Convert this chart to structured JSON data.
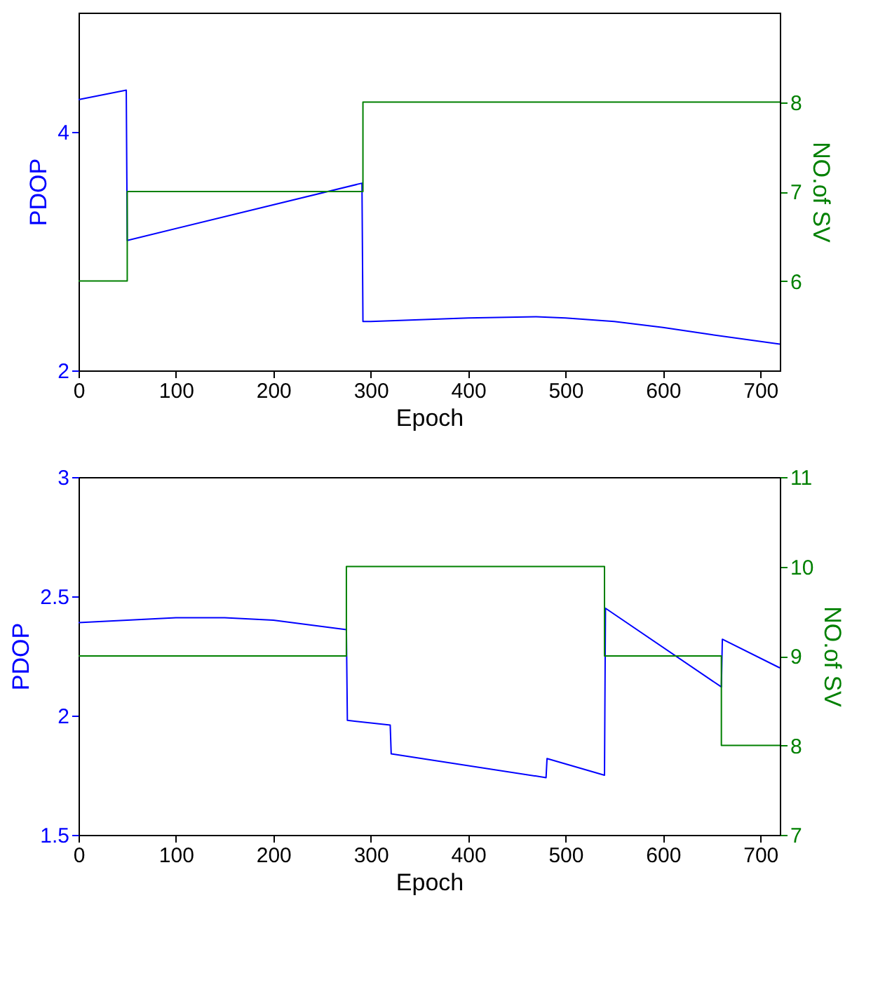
{
  "chart_data": [
    {
      "type": "line",
      "xlabel": "Epoch",
      "ylabel": "PDOP",
      "y2label": "NO.of SV",
      "xlim": [
        0,
        720
      ],
      "xticks": [
        0,
        100,
        200,
        300,
        400,
        500,
        600,
        700
      ],
      "ylim": [
        2,
        5
      ],
      "yticks": [
        2,
        4
      ],
      "y2lim": [
        5,
        9
      ],
      "y2ticks": [
        6,
        7,
        8
      ],
      "grid": false,
      "marker": "none",
      "line_style": "solid",
      "series": [
        {
          "type": "line",
          "color": "#0000ff",
          "x": [
            0,
            49,
            50,
            291,
            292,
            300,
            400,
            470,
            500,
            550,
            600,
            650,
            720
          ],
          "values": [
            4.27,
            4.35,
            3.09,
            3.57,
            2.41,
            2.41,
            2.44,
            2.45,
            2.44,
            2.41,
            2.36,
            2.3,
            2.22
          ]
        },
        {
          "type": "step",
          "axis": "y2",
          "color": "#008000",
          "x": [
            0,
            50,
            292,
            720
          ],
          "values": [
            6,
            7,
            8,
            8
          ]
        }
      ]
    },
    {
      "type": "line",
      "xlabel": "Epoch",
      "ylabel": "PDOP",
      "y2label": "NO.of SV",
      "xlim": [
        0,
        720
      ],
      "xticks": [
        0,
        100,
        200,
        300,
        400,
        500,
        600,
        700
      ],
      "ylim": [
        1.5,
        3
      ],
      "yticks": [
        1.5,
        2,
        2.5,
        3
      ],
      "y2lim": [
        7,
        11
      ],
      "y2ticks": [
        7,
        8,
        9,
        10,
        11
      ],
      "grid": false,
      "marker": "none",
      "line_style": "solid",
      "series": [
        {
          "type": "line",
          "color": "#0000ff",
          "x": [
            0,
            100,
            150,
            200,
            275,
            276,
            320,
            321,
            480,
            481,
            540,
            541,
            660,
            661,
            720
          ],
          "values": [
            2.39,
            2.41,
            2.41,
            2.4,
            2.36,
            1.98,
            1.96,
            1.84,
            1.74,
            1.82,
            1.75,
            2.45,
            2.12,
            2.32,
            2.2
          ]
        },
        {
          "type": "step",
          "axis": "y2",
          "color": "#008000",
          "x": [
            0,
            275,
            540,
            660,
            720
          ],
          "values": [
            9,
            10,
            9,
            8,
            8
          ]
        }
      ]
    }
  ]
}
